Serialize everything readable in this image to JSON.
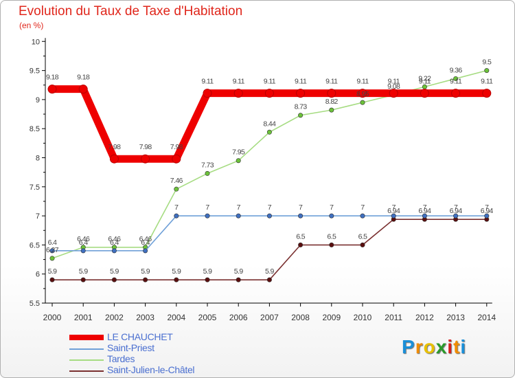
{
  "header": {
    "title": "Evolution du Taux de Taxe d'Habitation",
    "unit": "(en %)"
  },
  "logo": {
    "letters": [
      "P",
      "r",
      "o",
      "x",
      "i",
      "t",
      "i"
    ],
    "colors": [
      "#1a8fd8",
      "#f08c00",
      "#e8c000",
      "#2a9a2a",
      "#d81f1f",
      "#f08c00",
      "#1a8fd8"
    ]
  },
  "chart_data": {
    "type": "line",
    "title": "Evolution du Taux de Taxe d'Habitation",
    "ylabel": "(en %)",
    "xlabel": "",
    "x": [
      "2000",
      "2001",
      "2002",
      "2003",
      "2004",
      "2005",
      "2006",
      "2007",
      "2008",
      "2009",
      "2010",
      "2011",
      "2012",
      "2013",
      "2014"
    ],
    "ylim": [
      5.5,
      10
    ],
    "yticks": [
      "5.5",
      "6",
      "6.5",
      "7",
      "7.5",
      "8",
      "8.5",
      "9",
      "9.5",
      "10"
    ],
    "grid": false,
    "legend_position": "bottom-left",
    "series": [
      {
        "name": "LE CHAUCHET",
        "color": "#ee0000",
        "emphasis": "thick",
        "values": [
          9.18,
          9.18,
          7.98,
          7.98,
          7.98,
          9.11,
          9.11,
          9.11,
          9.11,
          9.11,
          9.11,
          9.11,
          9.11,
          9.11,
          9.11
        ],
        "labels": [
          "9.18",
          "9.18",
          "7.98",
          "7.98",
          "7.98",
          "9.11",
          "9.11",
          "9.11",
          "9.11",
          "9.11",
          "9.11",
          "9.11",
          "9.11",
          "9.11",
          "9.11"
        ]
      },
      {
        "name": "Saint-Priest",
        "color": "#6fa0d8",
        "marker": "#3f6fc0",
        "values": [
          6.4,
          6.4,
          6.4,
          6.4,
          7,
          7,
          7,
          7,
          7,
          7,
          7,
          7,
          7,
          7,
          7
        ],
        "labels": [
          "6.4",
          "6.4",
          "6.4",
          "6.4",
          "7",
          "7",
          "7",
          "7",
          "7",
          "7",
          "7",
          "7",
          "7",
          "7",
          "7"
        ]
      },
      {
        "name": "Tardes",
        "color": "#a6dc82",
        "marker": "#6cc23a",
        "values": [
          6.27,
          6.46,
          6.46,
          6.46,
          7.46,
          7.73,
          7.95,
          8.44,
          8.73,
          8.82,
          8.95,
          9.08,
          9.22,
          9.36,
          9.5
        ],
        "labels": [
          "6.27",
          "6.46",
          "6.46",
          "6.46",
          "7.46",
          "7.73",
          "7.95",
          "8.44",
          "8.73",
          "8.82",
          "8.95",
          "9.08",
          "9.22",
          "9.36",
          "9.5"
        ]
      },
      {
        "name": "Saint-Julien-le-Châtel",
        "color": "#7a3030",
        "marker": "#5a0e0e",
        "values": [
          5.9,
          5.9,
          5.9,
          5.9,
          5.9,
          5.9,
          5.9,
          5.9,
          6.5,
          6.5,
          6.5,
          6.94,
          6.94,
          6.94,
          6.94
        ],
        "labels": [
          "5.9",
          "5.9",
          "5.9",
          "5.9",
          "5.9",
          "5.9",
          "5.9",
          "5.9",
          "6.5",
          "6.5",
          "6.5",
          "6.94",
          "6.94",
          "6.94",
          "6.94"
        ]
      }
    ]
  }
}
